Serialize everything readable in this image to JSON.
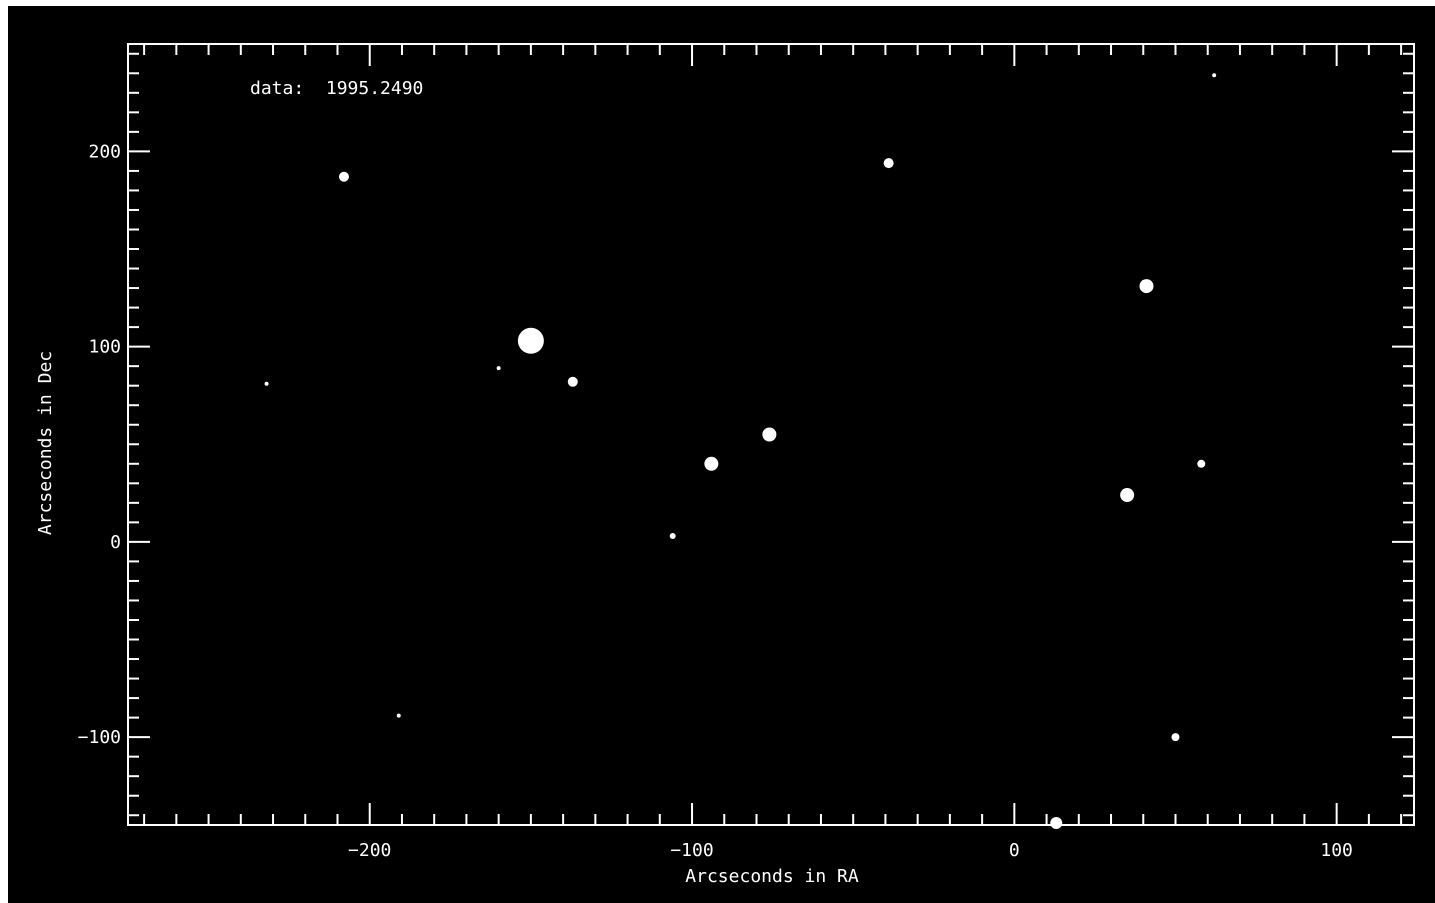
{
  "chart_data": {
    "type": "scatter",
    "annotation": "data:  1995.2490",
    "xlabel": "Arcseconds in RA",
    "ylabel": "Arcseconds in Dec",
    "xlim": [
      -275,
      124
    ],
    "ylim": [
      -145,
      255
    ],
    "xticks": [
      -200,
      -100,
      0,
      100
    ],
    "yticks": [
      -100,
      0,
      100,
      200
    ],
    "xtick_labels": [
      "−200",
      "−100",
      "0",
      "100"
    ],
    "ytick_labels": [
      "−100",
      "0",
      "100",
      "200"
    ],
    "background_color": "#000000",
    "foreground_color": "#ffffff",
    "grid": false,
    "points": [
      {
        "x": -208,
        "y": 187,
        "size": 5
      },
      {
        "x": -39,
        "y": 194,
        "size": 5
      },
      {
        "x": 62,
        "y": 239,
        "size": 2
      },
      {
        "x": 41,
        "y": 131,
        "size": 7
      },
      {
        "x": -150,
        "y": 103,
        "size": 13
      },
      {
        "x": -137,
        "y": 82,
        "size": 5
      },
      {
        "x": -160,
        "y": 89,
        "size": 2
      },
      {
        "x": -232,
        "y": 81,
        "size": 2
      },
      {
        "x": -76,
        "y": 55,
        "size": 7
      },
      {
        "x": -94,
        "y": 40,
        "size": 7
      },
      {
        "x": 58,
        "y": 40,
        "size": 4
      },
      {
        "x": 35,
        "y": 24,
        "size": 7
      },
      {
        "x": -106,
        "y": 3,
        "size": 3
      },
      {
        "x": -191,
        "y": -89,
        "size": 2
      },
      {
        "x": 50,
        "y": -100,
        "size": 4
      },
      {
        "x": 13,
        "y": -144,
        "size": 6
      }
    ]
  }
}
